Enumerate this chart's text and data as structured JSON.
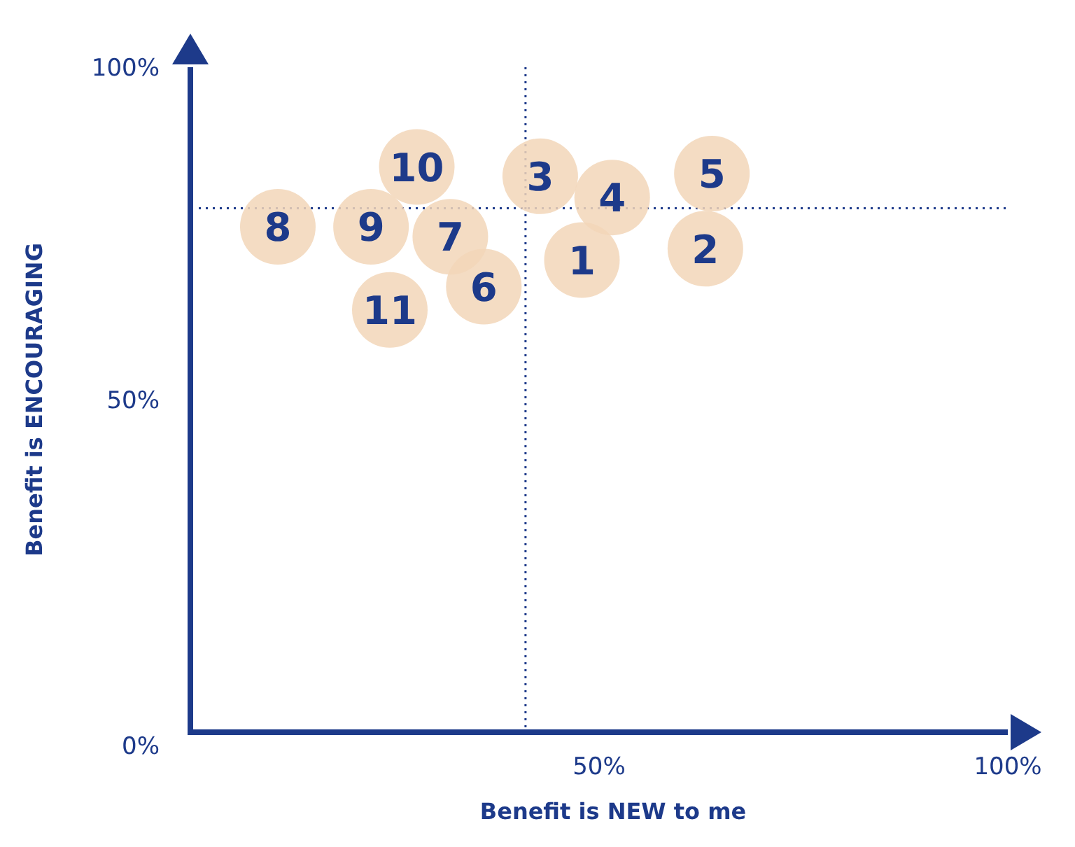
{
  "chart_data": {
    "type": "scatter",
    "xlabel": "Benefit is NEW to me",
    "ylabel": "Benefit is ENCOURAGING",
    "xlim": [
      0,
      100
    ],
    "ylim": [
      0,
      100
    ],
    "xticks": [
      {
        "value": 50,
        "label": "50%"
      },
      {
        "value": 100,
        "label": "100%"
      }
    ],
    "yticks": [
      {
        "value": 0,
        "label": "0%"
      },
      {
        "value": 50,
        "label": "50%"
      },
      {
        "value": 100,
        "label": "100%"
      }
    ],
    "grid": false,
    "marker": "circle",
    "series": [
      {
        "color": "#f2d6b8",
        "x": [
          47.9,
          63,
          42.8,
          51.6,
          63.8,
          35.9,
          31.8,
          10.7,
          22.1,
          27.7,
          24.4
        ],
        "values": [
          71,
          72.7,
          83.6,
          80.4,
          84,
          67,
          74.5,
          76,
          76,
          85,
          63.5
        ]
      }
    ],
    "annotations": [
      {
        "text": "1",
        "x": 47.9,
        "y": 71
      },
      {
        "text": "2",
        "x": 63,
        "y": 72.7
      },
      {
        "text": "3",
        "x": 42.8,
        "y": 83.6
      },
      {
        "text": "4",
        "x": 51.6,
        "y": 80.4
      },
      {
        "text": "5",
        "x": 63.8,
        "y": 84
      },
      {
        "text": "6",
        "x": 35.9,
        "y": 67
      },
      {
        "text": "7",
        "x": 31.8,
        "y": 74.5
      },
      {
        "text": "8",
        "x": 10.7,
        "y": 76
      },
      {
        "text": "9",
        "x": 22.1,
        "y": 76
      },
      {
        "text": "10",
        "x": 27.7,
        "y": 85
      },
      {
        "text": "11",
        "x": 24.4,
        "y": 63.5
      }
    ],
    "ref_lines": [
      {
        "axis": "x",
        "value": 41,
        "line_style": "dotted",
        "color": "#1d3a8a"
      },
      {
        "axis": "y",
        "value": 78.8,
        "line_style": "dotted",
        "color": "#1d3a8a"
      }
    ]
  }
}
